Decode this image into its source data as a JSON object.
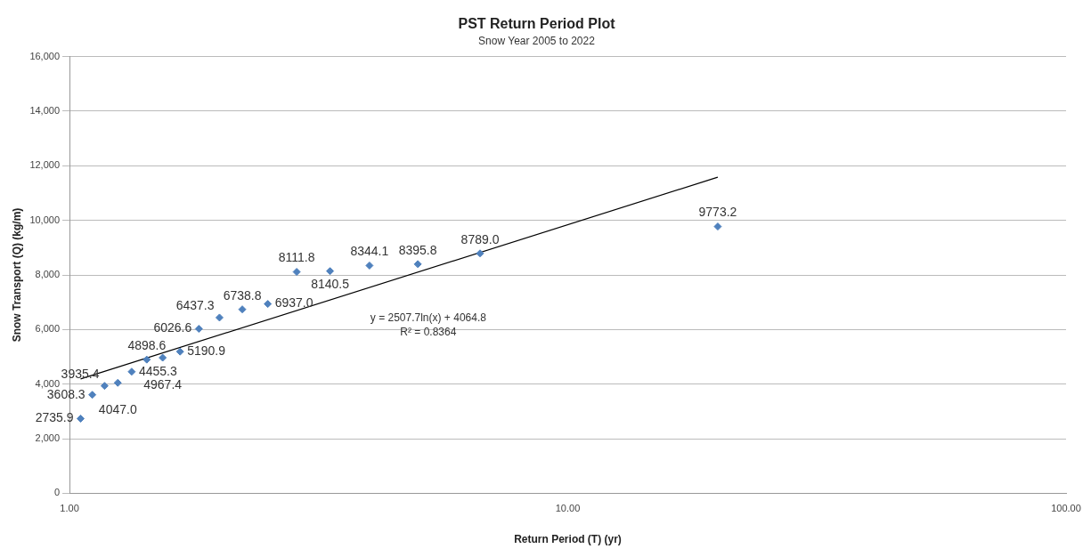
{
  "chart_data": {
    "type": "scatter",
    "title": "PST Return Period Plot",
    "subtitle": "Snow Year 2005 to 2022",
    "xlabel": "Return Period (T) (yr)",
    "ylabel": "Snow Transport (Q) (kg/m)",
    "log": "x",
    "xlim": [
      1,
      100
    ],
    "xticks": [
      {
        "value": 1,
        "label": "1.00"
      },
      {
        "value": 10,
        "label": "10.00"
      },
      {
        "value": 100,
        "label": "100.00"
      }
    ],
    "ylim": [
      0,
      16000
    ],
    "yticks": [
      {
        "value": 0,
        "label": "0"
      },
      {
        "value": 2000,
        "label": "2,000"
      },
      {
        "value": 4000,
        "label": "4,000"
      },
      {
        "value": 6000,
        "label": "6,000"
      },
      {
        "value": 8000,
        "label": "8,000"
      },
      {
        "value": 10000,
        "label": "10,000"
      },
      {
        "value": 12000,
        "label": "12,000"
      },
      {
        "value": 14000,
        "label": "14,000"
      },
      {
        "value": 16000,
        "label": "16,000"
      }
    ],
    "grid": "y",
    "marker": "diamond",
    "series": [
      {
        "color": "#4f81bd",
        "x": [
          1.0526,
          1.111,
          1.176,
          1.25,
          1.333,
          1.429,
          1.538,
          1.667,
          1.818,
          2,
          2.222,
          2.5,
          2.857,
          3.333,
          4,
          5,
          6.667,
          20
        ],
        "values": [
          2735.9,
          3608.3,
          3935.4,
          4047.0,
          4455.3,
          4898.6,
          4967.4,
          5190.9,
          6026.6,
          6437.3,
          6738.8,
          6937.0,
          8111.8,
          8140.5,
          8344.1,
          8395.8,
          8789.0,
          9773.2
        ],
        "value_labels": [
          "2735.9",
          "3608.3",
          "3935.4",
          "4047.0",
          "4455.3",
          "4898.6",
          "4967.4",
          "5190.9",
          "6026.6",
          "6437.3",
          "6738.8",
          "6937.0",
          "8111.8",
          "8140.5",
          "8344.1",
          "8395.8",
          "8789.0",
          "9773.2"
        ]
      },
      {
        "type": "line",
        "color": "#000000",
        "marker": "none",
        "x": [
          1.0526,
          20
        ],
        "values": [
          4190,
          11580
        ]
      }
    ],
    "annotations": [
      "y = 2507.7ln(x) + 4064.8",
      "R² = 0.8364"
    ]
  }
}
